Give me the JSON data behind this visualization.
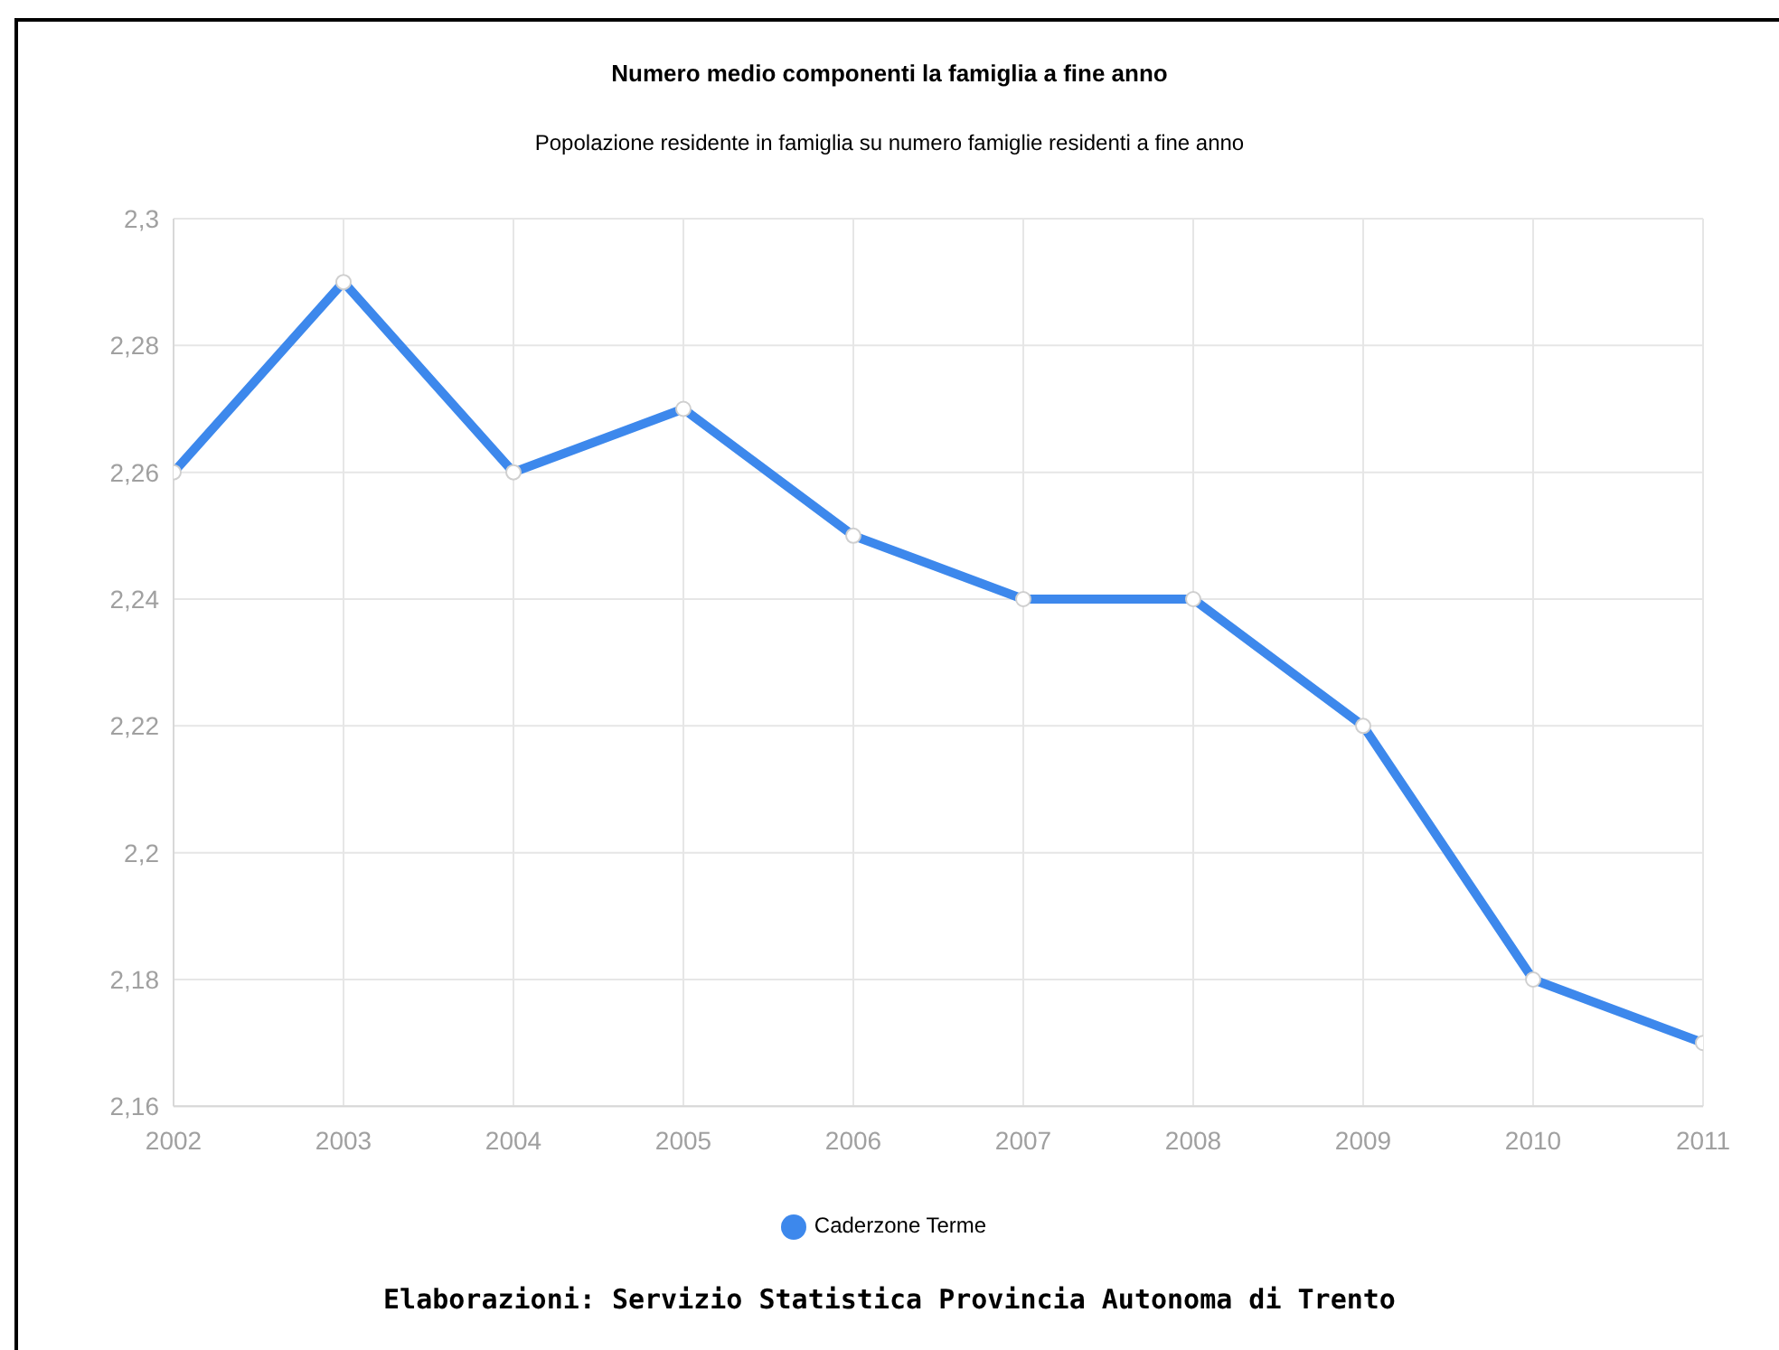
{
  "chart_data": {
    "type": "line",
    "title": "Numero medio componenti la famiglia a fine anno",
    "subtitle": "Popolazione residente in famiglia su numero famiglie residenti a fine anno",
    "x": [
      2002,
      2003,
      2004,
      2005,
      2006,
      2007,
      2008,
      2009,
      2010,
      2011
    ],
    "series": [
      {
        "name": "Caderzone Terme",
        "color": "#3d88ec",
        "values": [
          2.26,
          2.29,
          2.26,
          2.27,
          2.25,
          2.24,
          2.24,
          2.22,
          2.18,
          2.17
        ]
      }
    ],
    "xlim": [
      2002,
      2011
    ],
    "xticks": [
      2002,
      2003,
      2004,
      2005,
      2006,
      2007,
      2008,
      2009,
      2010,
      2011
    ],
    "ylim": [
      2.16,
      2.3
    ],
    "yticks": [
      {
        "value": 2.16,
        "label": "2,16"
      },
      {
        "value": 2.18,
        "label": "2,18"
      },
      {
        "value": 2.2,
        "label": "2,2"
      },
      {
        "value": 2.22,
        "label": "2,22"
      },
      {
        "value": 2.24,
        "label": "2,24"
      },
      {
        "value": 2.26,
        "label": "2,26"
      },
      {
        "value": 2.28,
        "label": "2,28"
      },
      {
        "value": 2.3,
        "label": "2,3"
      }
    ],
    "grid": true,
    "legend": "bottom",
    "marker": "circle",
    "line_style": "solid",
    "annotations": [
      "Elaborazioni: Servizio Statistica Provincia Autonoma di Trento"
    ]
  }
}
